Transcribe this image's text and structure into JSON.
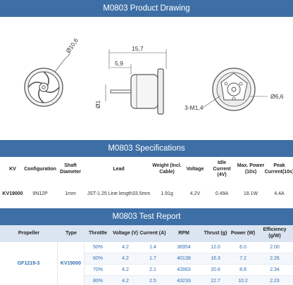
{
  "drawing": {
    "title": "M0803 Product Drawing",
    "dims": {
      "overall_length": "15,7",
      "body_length": "5,9",
      "shaft_dia": "Ø1",
      "outer_dia": "Ø10,6",
      "mount_dia": "Ø6,6",
      "screws": "3-M1,4"
    }
  },
  "specs": {
    "title": "M0803 Specifications",
    "headers": [
      "KV",
      "Configuration",
      "Shaft Diameter",
      "Lead",
      "Weight (Incl. Cable)",
      "Voltage",
      "Idle Current (4V)",
      "Max. Power (10s)",
      "Peak Current(10s)"
    ],
    "row": [
      "KV19000",
      "9N12P",
      "1mm",
      "JST-1.25 Line length33.5mm",
      "1.91g",
      "4.2V",
      "0.49A",
      "18.1W",
      "4.4A"
    ]
  },
  "test": {
    "title": "M0803 Test Report",
    "headers": [
      "Propeller",
      "Type",
      "Throttle",
      "Voltage (V)",
      "Current (A)",
      "RPM",
      "Thrust (g)",
      "Power (W)",
      "Efficiency (g/W)"
    ],
    "propeller": "GF1219-3",
    "type": "KV19000",
    "rows": [
      [
        "50%",
        "4.2",
        "1.4",
        "36954",
        "12.0",
        "6.0",
        "2.00"
      ],
      [
        "60%",
        "4.2",
        "1.7",
        "40138",
        "16.3",
        "7.2",
        "2.26"
      ],
      [
        "70%",
        "4.2",
        "2.1",
        "42863",
        "20.6",
        "8.8",
        "2.34"
      ],
      [
        "80%",
        "4.2",
        "2.5",
        "43233",
        "22.7",
        "10.2",
        "2.23"
      ]
    ]
  },
  "colors": {
    "banner": "#3d6fa6",
    "table_header": "#dbe5f1",
    "value_text": "#2f6fb5"
  }
}
